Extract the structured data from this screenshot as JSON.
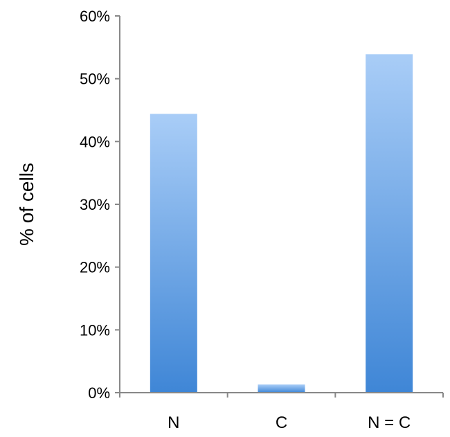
{
  "chart_data": {
    "type": "bar",
    "categories": [
      "N",
      "C",
      "N = C"
    ],
    "values": [
      44.4,
      1.3,
      53.9
    ],
    "ylabel": "% of cells",
    "xlabel": "",
    "ylim": [
      0,
      60
    ],
    "yticks": [
      0,
      10,
      20,
      30,
      40,
      50,
      60
    ],
    "ytick_labels": [
      "0%",
      "10%",
      "20%",
      "30%",
      "40%",
      "50%",
      "60%"
    ],
    "grid": false,
    "legend": "none",
    "colors": {
      "bar_top": "#a9cdf7",
      "bar_bottom": "#3f86d6",
      "axis": "#888888"
    }
  }
}
